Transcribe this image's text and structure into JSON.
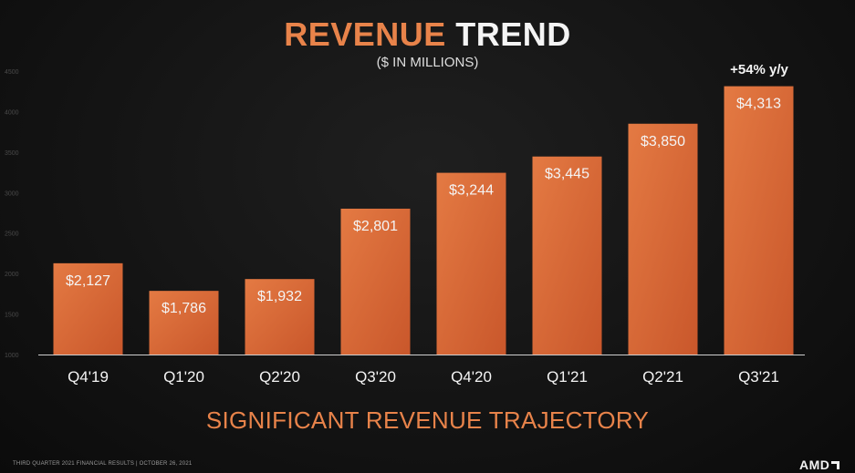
{
  "title_part1": "REVENUE",
  "title_part2": "TREND",
  "subtitle": "($ IN MILLIONS)",
  "growth_annotation": "+54% y/y",
  "tagline": "SIGNIFICANT REVENUE TRAJECTORY",
  "footer": "THIRD QUARTER 2021 FINANCIAL RESULTS  |  OCTOBER 26, 2021",
  "logo_text": "AMD",
  "colors": {
    "bar": "#e47a43",
    "bar_dark": "#c9572b",
    "title_accent": "#e8834a",
    "axis": "#cfcfcf",
    "label": "#f4f4f4"
  },
  "chart_data": {
    "type": "bar",
    "categories": [
      "Q4'19",
      "Q1'20",
      "Q2'20",
      "Q3'20",
      "Q4'20",
      "Q1'21",
      "Q2'21",
      "Q3'21"
    ],
    "values": [
      2127,
      1786,
      1932,
      2801,
      3244,
      3445,
      3850,
      4313
    ],
    "data_labels": [
      "$2,127",
      "$1,786",
      "$1,932",
      "$2,801",
      "$3,244",
      "$3,445",
      "$3,850",
      "$4,313"
    ],
    "y_ticks": [
      1000,
      1500,
      2000,
      2500,
      3000,
      3500,
      4000,
      4500
    ],
    "ylim": [
      1000,
      4500
    ],
    "title": "REVENUE TREND",
    "subtitle": "($ IN MILLIONS)",
    "xlabel": "",
    "ylabel": "",
    "grid": false,
    "legend": "none"
  }
}
